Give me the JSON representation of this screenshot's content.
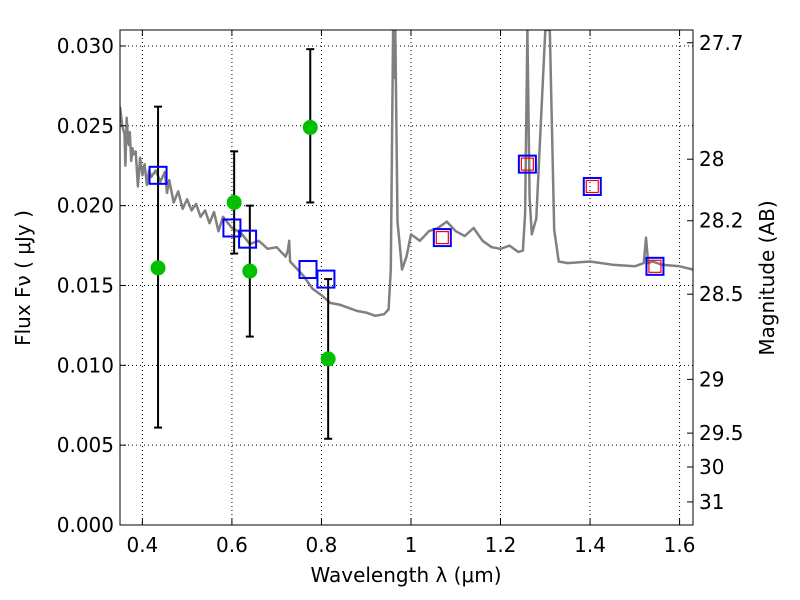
{
  "chart_data": {
    "type": "scatter",
    "xlabel": "Wavelength  λ (μm)",
    "ylabel": "Flux  Fν  ( μJy )",
    "y2label": "Magnitude (AB)",
    "xlim": [
      0.35,
      1.63
    ],
    "ylim": [
      0.0,
      0.031
    ],
    "grid": true,
    "xticks": [
      0.4,
      0.6,
      0.8,
      1.0,
      1.2,
      1.4,
      1.6
    ],
    "xtick_labels": [
      "0.4",
      "0.6",
      "0.8",
      "1",
      "1.2",
      "1.4",
      "1.6"
    ],
    "yticks": [
      0.0,
      0.005,
      0.01,
      0.015,
      0.02,
      0.025,
      0.03
    ],
    "ytick_labels": [
      "0.000",
      "0.005",
      "0.010",
      "0.015",
      "0.020",
      "0.025",
      "0.030"
    ],
    "y2ticks": [
      {
        "label": "27.7",
        "mag": 27.7
      },
      {
        "label": "28",
        "mag": 28.0
      },
      {
        "label": "28.2",
        "mag": 28.2
      },
      {
        "label": "28.5",
        "mag": 28.5
      },
      {
        "label": "29",
        "mag": 29.0
      },
      {
        "label": "29.5",
        "mag": 29.5
      },
      {
        "label": "30",
        "mag": 30.0
      },
      {
        "label": "31",
        "mag": 31.0
      }
    ],
    "series": [
      {
        "kind": "line",
        "color": "#808080",
        "x": [
          0.35,
          0.355,
          0.36,
          0.362,
          0.365,
          0.368,
          0.37,
          0.372,
          0.375,
          0.378,
          0.38,
          0.385,
          0.39,
          0.395,
          0.4,
          0.405,
          0.41,
          0.415,
          0.42,
          0.43,
          0.44,
          0.45,
          0.455,
          0.46,
          0.47,
          0.48,
          0.49,
          0.5,
          0.51,
          0.52,
          0.53,
          0.54,
          0.55,
          0.56,
          0.57,
          0.58,
          0.6,
          0.62,
          0.64,
          0.66,
          0.68,
          0.7,
          0.72,
          0.725,
          0.728,
          0.73,
          0.74,
          0.76,
          0.78,
          0.8,
          0.82,
          0.84,
          0.86,
          0.88,
          0.9,
          0.92,
          0.94,
          0.95,
          0.955,
          0.96,
          0.962,
          0.965,
          0.97,
          0.975,
          0.98,
          0.99,
          1.0,
          1.02,
          1.04,
          1.06,
          1.08,
          1.1,
          1.12,
          1.14,
          1.16,
          1.18,
          1.2,
          1.22,
          1.24,
          1.25,
          1.255,
          1.26,
          1.265,
          1.27,
          1.28,
          1.3,
          1.31,
          1.32,
          1.33,
          1.35,
          1.4,
          1.45,
          1.5,
          1.52,
          1.525,
          1.53,
          1.54,
          1.56,
          1.6,
          1.63
        ],
        "y": [
          0.0262,
          0.025,
          0.0245,
          0.0225,
          0.0255,
          0.024,
          0.0238,
          0.0246,
          0.0228,
          0.0236,
          0.0232,
          0.0234,
          0.0212,
          0.023,
          0.0219,
          0.0226,
          0.0213,
          0.0222,
          0.0218,
          0.0222,
          0.0215,
          0.0221,
          0.0208,
          0.0216,
          0.0202,
          0.0209,
          0.0198,
          0.0204,
          0.0197,
          0.0201,
          0.0193,
          0.0197,
          0.0189,
          0.0196,
          0.0184,
          0.0193,
          0.0186,
          0.0183,
          0.0176,
          0.0178,
          0.0173,
          0.0174,
          0.0168,
          0.0172,
          0.0178,
          0.0165,
          0.0162,
          0.0156,
          0.0148,
          0.0144,
          0.0139,
          0.0138,
          0.0136,
          0.0134,
          0.0133,
          0.0131,
          0.0132,
          0.0135,
          0.016,
          0.031,
          0.028,
          0.031,
          0.019,
          0.0175,
          0.016,
          0.0168,
          0.0182,
          0.0178,
          0.0184,
          0.0186,
          0.019,
          0.0184,
          0.0181,
          0.0186,
          0.0178,
          0.0174,
          0.0173,
          0.0175,
          0.0171,
          0.0172,
          0.0195,
          0.031,
          0.0205,
          0.0182,
          0.0192,
          0.031,
          0.031,
          0.0185,
          0.0165,
          0.0164,
          0.0165,
          0.0163,
          0.0162,
          0.0164,
          0.018,
          0.0164,
          0.0165,
          0.0163,
          0.0162,
          0.016
        ]
      },
      {
        "kind": "points",
        "marker": "circle",
        "color": "#00c000",
        "x": [
          0.435,
          0.605,
          0.64,
          0.775,
          0.815
        ],
        "y": [
          0.0161,
          0.0202,
          0.0159,
          0.0249,
          0.0104
        ],
        "err_low": [
          0.0061,
          0.017,
          0.0118,
          0.0202,
          0.0054
        ],
        "err_high": [
          0.0262,
          0.0234,
          0.02,
          0.0298,
          0.0154
        ]
      },
      {
        "kind": "points",
        "marker": "square",
        "color": "#0000ff",
        "x": [
          0.435,
          0.6,
          0.635,
          0.77,
          0.81,
          1.07,
          1.26,
          1.405,
          1.545
        ],
        "y": [
          0.0219,
          0.0186,
          0.0179,
          0.016,
          0.0154,
          0.018,
          0.0226,
          0.0212,
          0.0162
        ]
      },
      {
        "kind": "points",
        "marker": "square-small",
        "color": "#ff0000",
        "x": [
          1.07,
          1.26,
          1.405,
          1.545
        ],
        "y": [
          0.018,
          0.0226,
          0.0212,
          0.0162
        ]
      }
    ]
  }
}
